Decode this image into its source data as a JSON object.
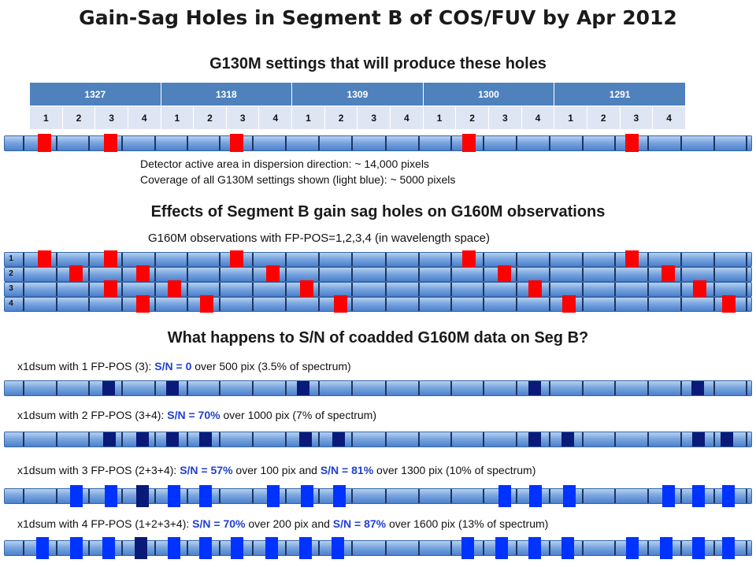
{
  "title": "Gain-Sag Holes in Segment B of COS/FUV by Apr 2012",
  "g130m": {
    "heading": "G130M settings that will produce these holes",
    "cenwaves": [
      "1327",
      "1318",
      "1309",
      "1300",
      "1291"
    ],
    "fppos": [
      "1",
      "2",
      "3",
      "4"
    ],
    "note_line1": "Detector active area in dispersion direction: ~ 14,000 pixels",
    "note_line2": "Coverage of all G130M settings shown (light blue): ~ 5000 pixels"
  },
  "g160m": {
    "heading": "Effects of Segment B gain sag holes on G160M observations",
    "subheading": "G160M observations with FP-POS=1,2,3,4 (in wavelength space)",
    "row_labels": [
      "1",
      "2",
      "3",
      "4"
    ]
  },
  "coadd": {
    "heading": "What happens to S/N of coadded G160M data on Seg B?",
    "cap1_pre": "x1dsum with 1 FP-POS (3): ",
    "cap1_sn": "S/N = 0",
    "cap1_post": " over 500 pix  (3.5% of spectrum)",
    "cap2_pre": "x1dsum with 2 FP-POS (3+4): ",
    "cap2_sn": "S/N = 70%",
    "cap2_post": " over 1000 pix (7% of spectrum)",
    "cap3_pre": "x1dsum with 3 FP-POS (2+3+4): ",
    "cap3_sn1": "S/N = 57%",
    "cap3_mid": " over 100 pix and ",
    "cap3_sn2": "S/N = 81%",
    "cap3_post": " over 1300 pix (10% of spectrum)",
    "cap4_pre": "x1dsum with 4 FP-POS (1+2+3+4): ",
    "cap4_sn1": "S/N = 70%",
    "cap4_mid": " over 200 pix and ",
    "cap4_sn2": "S/N = 87%",
    "cap4_post": " over 1600 pix (13% of spectrum)"
  },
  "colors": {
    "hole_red": "#ff0000",
    "hole_navy": "#0a1a78",
    "hole_blue": "#0033ff",
    "table_header": "#4f81bd",
    "table_cell": "#dfe6f3"
  }
}
